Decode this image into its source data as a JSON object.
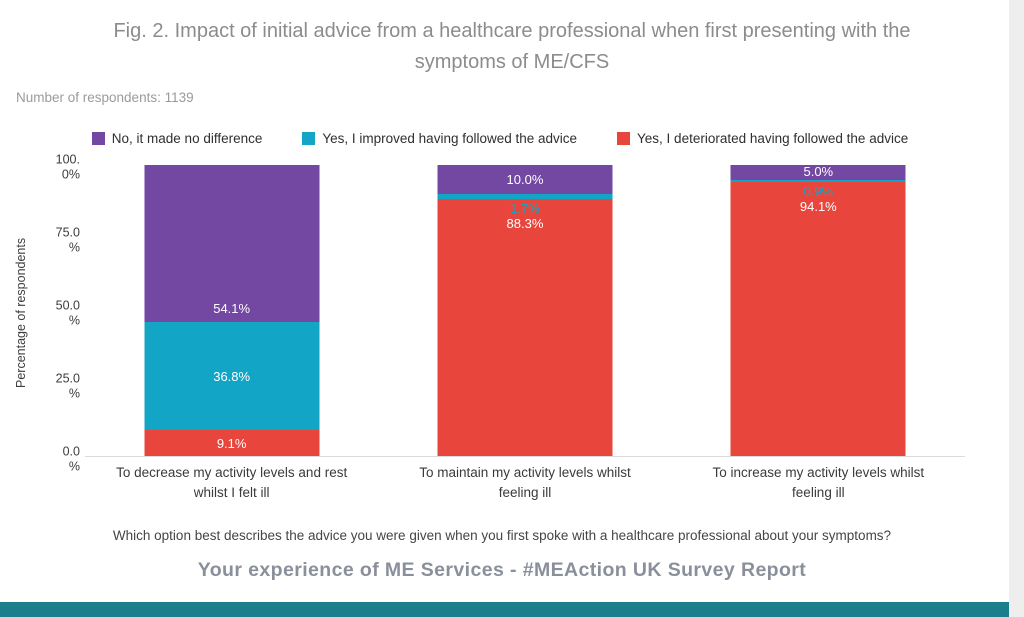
{
  "chart_data": {
    "type": "bar",
    "stacked": true,
    "title": "Fig. 2. Impact of initial advice from a healthcare professional when first presenting with the symptoms of ME/CFS",
    "subtitle": "Number of respondents: 1139",
    "ylabel": "Percentage of respondents",
    "ylim": [
      0,
      100
    ],
    "grid": false,
    "legend_position": "top",
    "y_ticks": [
      {
        "value": 100,
        "lines": "100.\n0%"
      },
      {
        "value": 75,
        "lines": "75.0\n%"
      },
      {
        "value": 50,
        "lines": "50.0\n%"
      },
      {
        "value": 25,
        "lines": "25.0\n%"
      },
      {
        "value": 0,
        "lines": "0.0\n%"
      }
    ],
    "categories": [
      "To decrease my activity levels and rest whilst I felt ill",
      "To maintain my activity levels whilst feeling ill",
      "To increase my activity levels whilst feeling ill"
    ],
    "series": [
      {
        "name": "Yes, I deteriorated having followed the advice",
        "color": "#e8463d",
        "values": [
          9.1,
          88.3,
          94.1
        ],
        "labels": [
          "9.1%",
          "88.3%",
          "94.1%"
        ],
        "label_placement": [
          "center",
          "top",
          "top"
        ]
      },
      {
        "name": "Yes, I improved having followed the advice",
        "color": "#13a5c5",
        "values": [
          36.8,
          1.7,
          0.9
        ],
        "labels": [
          "36.8%",
          "1.7%",
          "0.9%"
        ],
        "label_placement": [
          "center",
          "below",
          "below"
        ]
      },
      {
        "name": "No, it made no difference",
        "color": "#7248a3",
        "values": [
          54.1,
          10.0,
          5.0
        ],
        "labels": [
          "54.1%",
          "10.0%",
          "5.0%"
        ],
        "label_placement": [
          "bottom",
          "center",
          "center"
        ]
      }
    ],
    "xlabel": "Which option best describes the advice you were given when you first spoke with a healthcare professional about your symptoms?"
  },
  "legend": [
    {
      "label": "No, it made no difference",
      "color": "#7248a3"
    },
    {
      "label": "Yes, I improved having followed the advice",
      "color": "#13a5c5"
    },
    {
      "label": "Yes, I deteriorated having followed the advice",
      "color": "#e8463d"
    }
  ],
  "footer": "Your experience of ME Services - #MEAction UK Survey Report",
  "colors": {
    "bottom_strip": "#1a7e8c",
    "title_text": "#8c8c8c",
    "footer_text": "#8a909b"
  }
}
